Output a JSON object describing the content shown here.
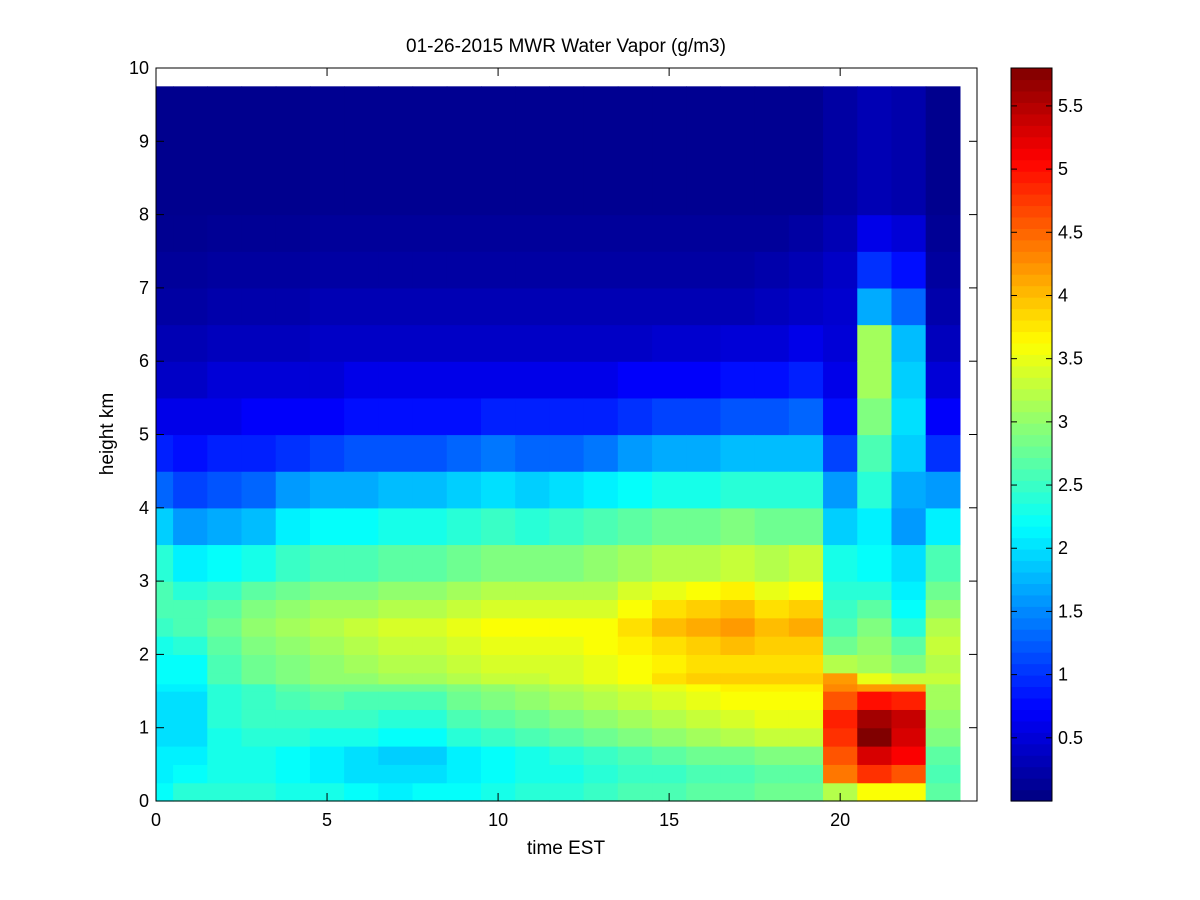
{
  "chart_data": {
    "type": "heatmap",
    "title": "01-26-2015 MWR Water Vapor (g/m3)",
    "xlabel": "time EST",
    "ylabel": "height km",
    "xlim": [
      0,
      24
    ],
    "ylim": [
      0,
      10
    ],
    "x_ticks": [
      0,
      5,
      10,
      15,
      20
    ],
    "y_ticks": [
      0,
      1,
      2,
      3,
      4,
      5,
      6,
      7,
      8,
      9,
      10
    ],
    "colorbar": {
      "colormap": "jet",
      "range": [
        0.0,
        5.8
      ],
      "ticks": [
        0.5,
        1,
        1.5,
        2,
        2.5,
        3,
        3.5,
        4,
        4.5,
        5,
        5.5
      ]
    },
    "x_centers": [
      0,
      1,
      2,
      3,
      4,
      5,
      6,
      7,
      8,
      9,
      10,
      11,
      12,
      13,
      14,
      15,
      16,
      17,
      18,
      19,
      20,
      21,
      22,
      23
    ],
    "data_x_range": [
      -0.5,
      23.5
    ],
    "data_top_km": 9.75,
    "height_levels_km": [
      0,
      0.25,
      0.5,
      0.75,
      1.0,
      1.25,
      1.5,
      1.6,
      1.75,
      2.0,
      2.25,
      2.5,
      2.75,
      3.0,
      3.5,
      4.0,
      4.5,
      5.0,
      5.5,
      6.0,
      6.5,
      7.0,
      7.5,
      8.0,
      9.75
    ],
    "profiles": [
      [
        2.2,
        2.1,
        2.1,
        2.0,
        2.0,
        2.0,
        2.1,
        2.2,
        2.2,
        2.3,
        2.5,
        2.6,
        2.6,
        2.4,
        1.9,
        1.3,
        0.9,
        0.6,
        0.4,
        0.3,
        0.2,
        0.15,
        0.1,
        0.08,
        0.05
      ],
      [
        2.4,
        2.2,
        2.1,
        2.0,
        2.0,
        2.0,
        2.1,
        2.2,
        2.2,
        2.4,
        2.6,
        2.6,
        2.4,
        2.1,
        1.6,
        1.1,
        0.8,
        0.6,
        0.4,
        0.3,
        0.2,
        0.15,
        0.1,
        0.08,
        0.05
      ],
      [
        2.4,
        2.3,
        2.3,
        2.3,
        2.4,
        2.4,
        2.4,
        2.6,
        2.6,
        2.7,
        2.8,
        2.7,
        2.5,
        2.2,
        1.7,
        1.2,
        0.9,
        0.6,
        0.5,
        0.35,
        0.25,
        0.18,
        0.12,
        0.08,
        0.05
      ],
      [
        2.4,
        2.3,
        2.3,
        2.4,
        2.5,
        2.5,
        2.5,
        2.8,
        2.8,
        2.9,
        3.0,
        2.9,
        2.7,
        2.3,
        1.8,
        1.3,
        0.9,
        0.7,
        0.5,
        0.35,
        0.25,
        0.18,
        0.12,
        0.08,
        0.05
      ],
      [
        2.3,
        2.2,
        2.2,
        2.4,
        2.5,
        2.6,
        2.7,
        2.9,
        2.9,
        3.0,
        3.1,
        3.0,
        2.8,
        2.5,
        2.1,
        1.6,
        1.0,
        0.7,
        0.5,
        0.35,
        0.25,
        0.18,
        0.12,
        0.08,
        0.05
      ],
      [
        2.3,
        2.1,
        2.1,
        2.3,
        2.5,
        2.7,
        2.8,
        3.0,
        3.0,
        3.1,
        3.2,
        3.1,
        2.9,
        2.6,
        2.2,
        1.7,
        1.1,
        0.7,
        0.5,
        0.4,
        0.3,
        0.2,
        0.15,
        0.1,
        0.05
      ],
      [
        2.2,
        2.0,
        2.0,
        2.3,
        2.5,
        2.6,
        2.8,
        3.0,
        3.1,
        3.2,
        3.3,
        3.1,
        2.9,
        2.6,
        2.2,
        1.7,
        1.2,
        0.8,
        0.6,
        0.4,
        0.3,
        0.2,
        0.15,
        0.1,
        0.05
      ],
      [
        2.1,
        2.0,
        1.9,
        2.2,
        2.4,
        2.6,
        2.8,
        3.1,
        3.2,
        3.3,
        3.4,
        3.2,
        3.0,
        2.7,
        2.3,
        1.8,
        1.2,
        0.8,
        0.6,
        0.4,
        0.3,
        0.2,
        0.15,
        0.1,
        0.05
      ],
      [
        2.2,
        2.0,
        1.9,
        2.2,
        2.4,
        2.6,
        2.8,
        3.1,
        3.2,
        3.3,
        3.4,
        3.2,
        3.0,
        2.7,
        2.3,
        1.8,
        1.2,
        0.8,
        0.6,
        0.4,
        0.3,
        0.2,
        0.15,
        0.1,
        0.05
      ],
      [
        2.2,
        2.1,
        2.1,
        2.4,
        2.6,
        2.8,
        2.9,
        3.2,
        3.3,
        3.4,
        3.5,
        3.3,
        3.1,
        2.8,
        2.4,
        1.9,
        1.3,
        0.8,
        0.6,
        0.4,
        0.3,
        0.2,
        0.15,
        0.1,
        0.05
      ],
      [
        2.3,
        2.2,
        2.2,
        2.5,
        2.7,
        2.9,
        3.0,
        3.3,
        3.4,
        3.5,
        3.6,
        3.4,
        3.2,
        2.9,
        2.5,
        2.0,
        1.4,
        0.9,
        0.6,
        0.4,
        0.3,
        0.2,
        0.15,
        0.1,
        0.05
      ],
      [
        2.4,
        2.3,
        2.3,
        2.6,
        2.8,
        3.0,
        3.1,
        3.3,
        3.4,
        3.5,
        3.6,
        3.4,
        3.2,
        2.9,
        2.4,
        1.9,
        1.3,
        0.9,
        0.6,
        0.4,
        0.3,
        0.2,
        0.15,
        0.1,
        0.05
      ],
      [
        2.4,
        2.3,
        2.4,
        2.7,
        2.9,
        3.1,
        3.2,
        3.4,
        3.4,
        3.5,
        3.6,
        3.4,
        3.2,
        2.9,
        2.5,
        2.0,
        1.3,
        0.9,
        0.6,
        0.4,
        0.3,
        0.2,
        0.15,
        0.1,
        0.05
      ],
      [
        2.5,
        2.4,
        2.5,
        2.8,
        3.0,
        3.2,
        3.3,
        3.5,
        3.5,
        3.6,
        3.6,
        3.4,
        3.2,
        3.0,
        2.6,
        2.1,
        1.4,
        0.9,
        0.6,
        0.4,
        0.3,
        0.2,
        0.15,
        0.1,
        0.05
      ],
      [
        2.6,
        2.5,
        2.6,
        2.9,
        3.1,
        3.3,
        3.4,
        3.6,
        3.6,
        3.7,
        3.8,
        3.6,
        3.4,
        3.1,
        2.7,
        2.2,
        1.6,
        1.0,
        0.7,
        0.4,
        0.3,
        0.2,
        0.15,
        0.1,
        0.05
      ],
      [
        2.6,
        2.5,
        2.7,
        3.0,
        3.2,
        3.4,
        3.5,
        3.8,
        3.7,
        3.8,
        4.0,
        3.8,
        3.5,
        3.2,
        2.8,
        2.3,
        1.7,
        1.1,
        0.7,
        0.45,
        0.3,
        0.2,
        0.15,
        0.1,
        0.05
      ],
      [
        2.7,
        2.6,
        2.8,
        3.1,
        3.3,
        3.5,
        3.6,
        3.9,
        3.8,
        3.9,
        4.1,
        3.9,
        3.6,
        3.2,
        2.8,
        2.3,
        1.7,
        1.1,
        0.7,
        0.45,
        0.3,
        0.2,
        0.15,
        0.1,
        0.05
      ],
      [
        2.7,
        2.6,
        2.8,
        3.2,
        3.4,
        3.6,
        3.7,
        3.9,
        3.8,
        4.0,
        4.2,
        4.0,
        3.7,
        3.3,
        2.9,
        2.4,
        1.8,
        1.2,
        0.8,
        0.5,
        0.3,
        0.2,
        0.15,
        0.1,
        0.05
      ],
      [
        2.8,
        2.7,
        2.9,
        3.3,
        3.5,
        3.6,
        3.7,
        3.9,
        3.8,
        3.9,
        4.0,
        3.8,
        3.5,
        3.2,
        2.8,
        2.4,
        1.8,
        1.2,
        0.8,
        0.5,
        0.35,
        0.25,
        0.15,
        0.1,
        0.05
      ],
      [
        2.8,
        2.7,
        2.9,
        3.3,
        3.5,
        3.6,
        3.7,
        3.9,
        3.8,
        3.9,
        4.1,
        3.9,
        3.6,
        3.3,
        2.8,
        2.4,
        1.8,
        1.3,
        0.9,
        0.6,
        0.4,
        0.3,
        0.2,
        0.1,
        0.05
      ],
      [
        3.2,
        4.4,
        4.6,
        4.8,
        4.9,
        4.6,
        4.3,
        4.2,
        3.2,
        2.8,
        2.6,
        2.5,
        2.4,
        2.3,
        1.9,
        1.6,
        1.1,
        0.8,
        0.6,
        0.5,
        0.45,
        0.4,
        0.3,
        0.2,
        0.1
      ],
      [
        3.6,
        4.8,
        5.3,
        5.8,
        5.6,
        5.0,
        4.2,
        3.5,
        3.1,
        3.0,
        2.9,
        2.7,
        2.4,
        2.2,
        2.1,
        2.4,
        2.6,
        2.9,
        3.1,
        3.1,
        1.7,
        1.0,
        0.6,
        0.3,
        0.15
      ],
      [
        3.6,
        4.6,
        5.1,
        5.3,
        5.4,
        4.9,
        4.2,
        3.3,
        2.9,
        2.7,
        2.4,
        2.2,
        2.1,
        2.0,
        1.6,
        1.7,
        1.9,
        2.0,
        1.9,
        1.8,
        1.3,
        0.8,
        0.5,
        0.25,
        0.15
      ],
      [
        2.7,
        2.6,
        2.7,
        2.9,
        3.0,
        3.1,
        3.1,
        3.3,
        3.2,
        3.3,
        3.2,
        3.0,
        2.8,
        2.6,
        2.1,
        1.6,
        1.0,
        0.7,
        0.5,
        0.35,
        0.25,
        0.18,
        0.12,
        0.08,
        0.05
      ]
    ]
  }
}
